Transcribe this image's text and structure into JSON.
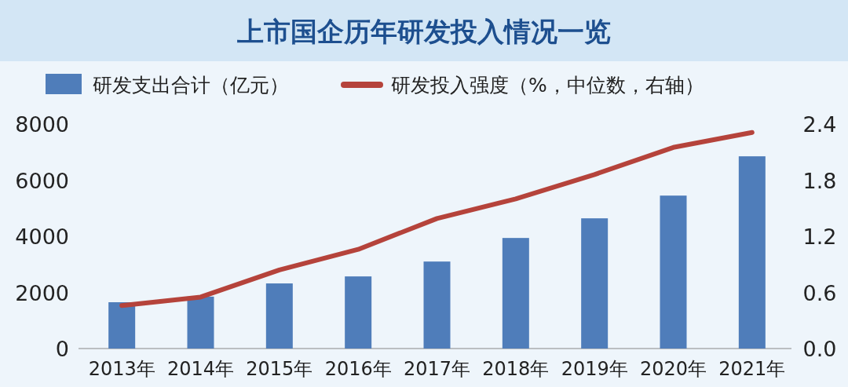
{
  "chart_data": {
    "type": "bar",
    "title": "上市国企历年研发投入情况一览",
    "categories": [
      "2013年",
      "2014年",
      "2015年",
      "2016年",
      "2017年",
      "2018年",
      "2019年",
      "2020年",
      "2021年"
    ],
    "series": [
      {
        "name": "研发支出合计（亿元）",
        "color": "#4f7dba",
        "values": [
          1650,
          1850,
          2320,
          2570,
          3100,
          3940,
          4640,
          5450,
          6850
        ]
      },
      {
        "name": "研发投入强度（%，中位数，右轴）",
        "type": "line",
        "axis": "y2",
        "color": "#b5433b",
        "values": [
          0.46,
          0.55,
          0.84,
          1.06,
          1.39,
          1.6,
          1.86,
          2.15,
          2.31
        ]
      }
    ],
    "ylim": [
      0,
      8000
    ],
    "yticks": [
      0,
      2000,
      4000,
      6000,
      8000
    ],
    "y2lim": [
      0,
      2.4
    ],
    "y2ticks": [
      {
        "value": 0,
        "label": "0.0"
      },
      0.6,
      1.2,
      1.8,
      2.4
    ],
    "legend": "top",
    "grid": false
  }
}
